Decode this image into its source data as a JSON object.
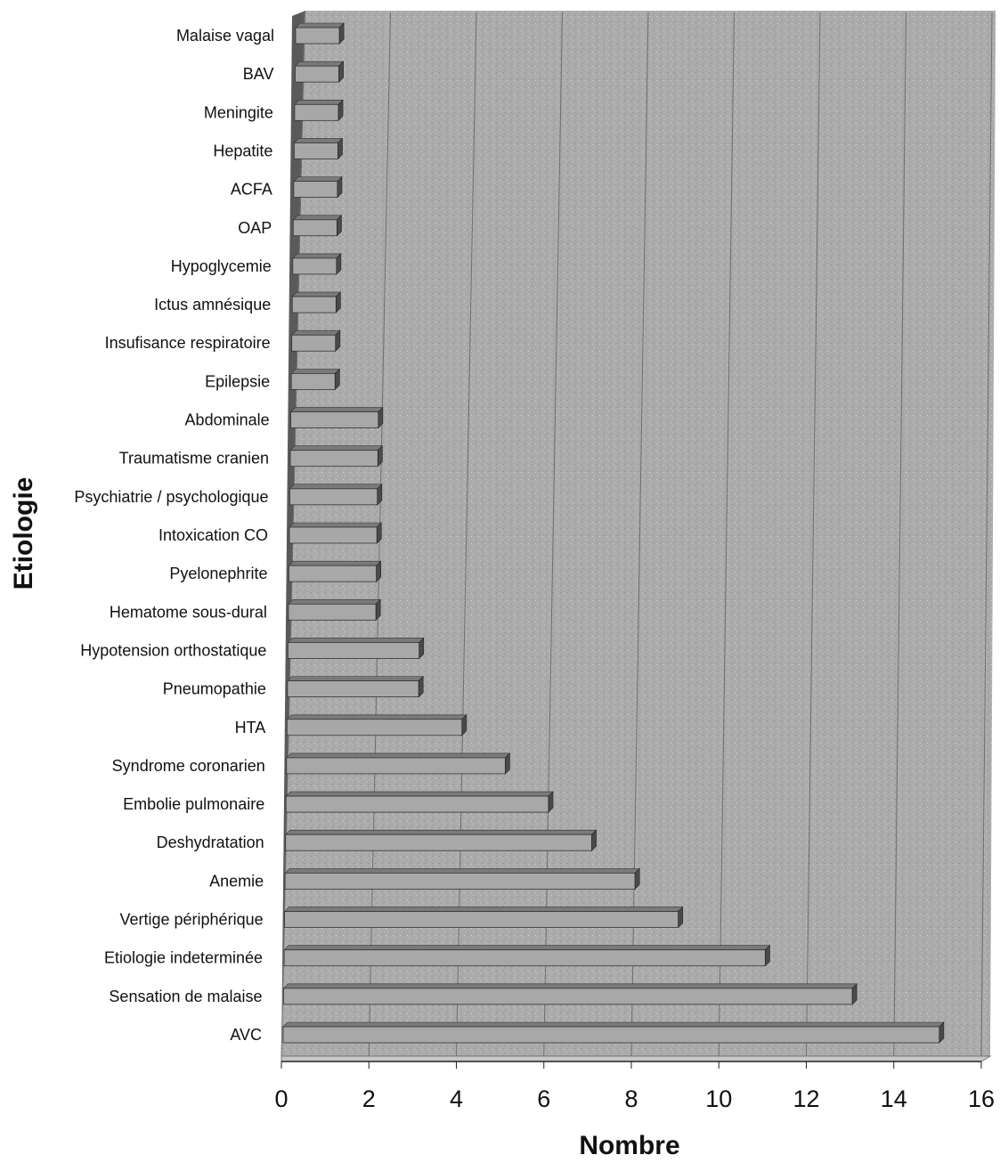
{
  "chart_data": {
    "type": "bar",
    "orientation": "horizontal",
    "style": "3d",
    "title": "",
    "xlabel": "Nombre",
    "ylabel": "Etiologie",
    "xlim": [
      0,
      16
    ],
    "xticks": [
      0,
      2,
      4,
      6,
      8,
      10,
      12,
      14,
      16
    ],
    "grid": true,
    "legend": "none",
    "categories": [
      "Malaise vagal",
      "BAV",
      "Meningite",
      "Hepatite",
      "ACFA",
      "OAP",
      "Hypoglycemie",
      "Ictus amnésique",
      "Insufisance respiratoire",
      "Epilepsie",
      "Abdominale",
      "Traumatisme cranien",
      "Psychiatrie / psychologique",
      "Intoxication CO",
      "Pyelonephrite",
      "Hematome sous-dural",
      "Hypotension orthostatique",
      "Pneumopathie",
      "HTA",
      "Syndrome coronarien",
      "Embolie pulmonaire",
      "Deshydratation",
      "Anemie",
      "Vertige périphérique",
      "Etiologie indeterminée",
      "Sensation de malaise",
      "AVC"
    ],
    "values": [
      1,
      1,
      1,
      1,
      1,
      1,
      1,
      1,
      1,
      1,
      2,
      2,
      2,
      2,
      2,
      2,
      3,
      3,
      4,
      5,
      6,
      7,
      8,
      9,
      11,
      13,
      15
    ],
    "colors": {
      "background": "#a9a9a9",
      "bar_face": "#a8a8a8",
      "bar_top": "#7a7a7a",
      "bar_end": "#4a4a4a",
      "grid": "#6e6e6e",
      "wall": "#5a5a5a"
    }
  }
}
